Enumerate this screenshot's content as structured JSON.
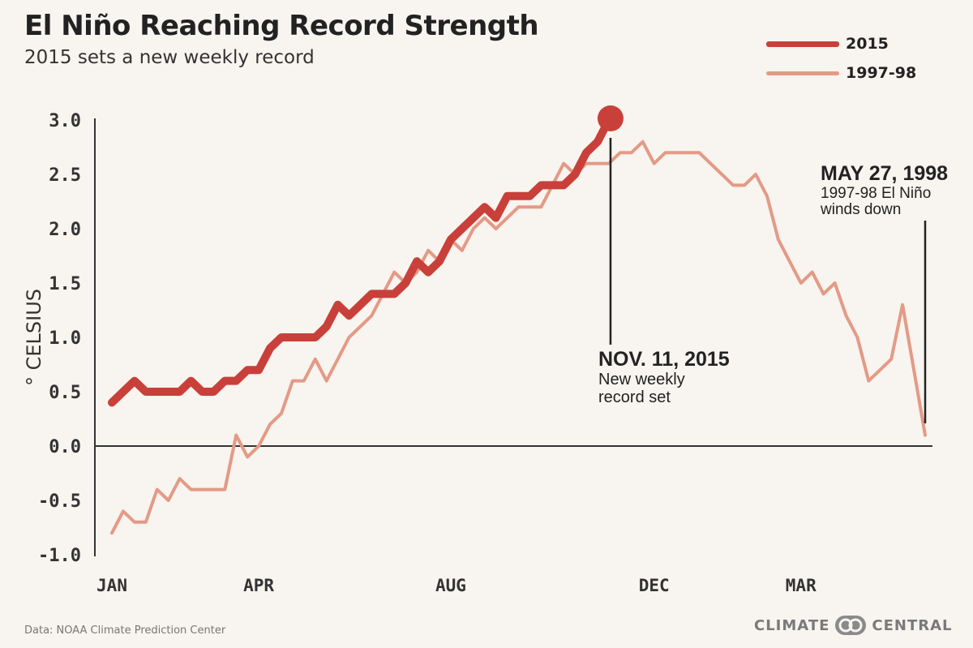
{
  "title": "El Niño Reaching Record Strength",
  "subtitle": "2015 sets a new weekly record",
  "source": "Data: NOAA Climate Prediction Center",
  "brand": {
    "left": "CLIMATE",
    "right": "CENTRAL"
  },
  "colors": {
    "series_2015": "#c9403a",
    "series_1997": "#e39a86",
    "axis": "#333333",
    "text": "#222222"
  },
  "chart_data": {
    "type": "line",
    "title": "El Niño Reaching Record Strength",
    "subtitle": "2015 sets a new weekly record",
    "ylabel": "° CELSIUS",
    "xlabel": "",
    "ylim": [
      -1.0,
      3.0
    ],
    "y_ticks": [
      "3.0",
      "2.5",
      "2.0",
      "1.5",
      "1.0",
      "0.5",
      "0.0",
      "-0.5",
      "-1.0"
    ],
    "x_ticks": [
      {
        "label": "JAN",
        "week": 0
      },
      {
        "label": "APR",
        "week": 13
      },
      {
        "label": "AUG",
        "week": 30
      },
      {
        "label": "DEC",
        "week": 48
      },
      {
        "label": "MAR",
        "week": 61
      }
    ],
    "legend_position": "top-right",
    "series": [
      {
        "name": "2015",
        "values": [
          0.4,
          0.5,
          0.6,
          0.5,
          0.5,
          0.5,
          0.5,
          0.6,
          0.5,
          0.5,
          0.6,
          0.6,
          0.7,
          0.7,
          0.9,
          1.0,
          1.0,
          1.0,
          1.0,
          1.1,
          1.3,
          1.2,
          1.3,
          1.4,
          1.4,
          1.4,
          1.5,
          1.7,
          1.6,
          1.7,
          1.9,
          2.0,
          2.1,
          2.2,
          2.1,
          2.3,
          2.3,
          2.3,
          2.4,
          2.4,
          2.4,
          2.5,
          2.7,
          2.8,
          3.0
        ]
      },
      {
        "name": "1997-98",
        "values": [
          -0.8,
          -0.6,
          -0.7,
          -0.7,
          -0.4,
          -0.5,
          -0.3,
          -0.4,
          -0.4,
          -0.4,
          -0.4,
          0.1,
          -0.1,
          0.0,
          0.2,
          0.3,
          0.6,
          0.6,
          0.8,
          0.6,
          0.8,
          1.0,
          1.1,
          1.2,
          1.4,
          1.6,
          1.5,
          1.6,
          1.8,
          1.7,
          1.9,
          1.8,
          2.0,
          2.1,
          2.0,
          2.1,
          2.2,
          2.2,
          2.2,
          2.4,
          2.6,
          2.5,
          2.6,
          2.6,
          2.6,
          2.7,
          2.7,
          2.8,
          2.6,
          2.7,
          2.7,
          2.7,
          2.7,
          2.6,
          2.5,
          2.4,
          2.4,
          2.5,
          2.3,
          1.9,
          1.7,
          1.5,
          1.6,
          1.4,
          1.5,
          1.2,
          1.0,
          0.6,
          0.7,
          0.8,
          1.3,
          0.7,
          0.1
        ]
      }
    ],
    "annotations": [
      {
        "series": "2015",
        "week": 44,
        "title": "NOV. 11, 2015",
        "text": [
          "New weekly",
          "record set"
        ]
      },
      {
        "series": "1997-98",
        "week": 72,
        "title": "MAY 27, 1998",
        "text": [
          "1997-98 El Niño",
          "winds down"
        ]
      }
    ]
  }
}
